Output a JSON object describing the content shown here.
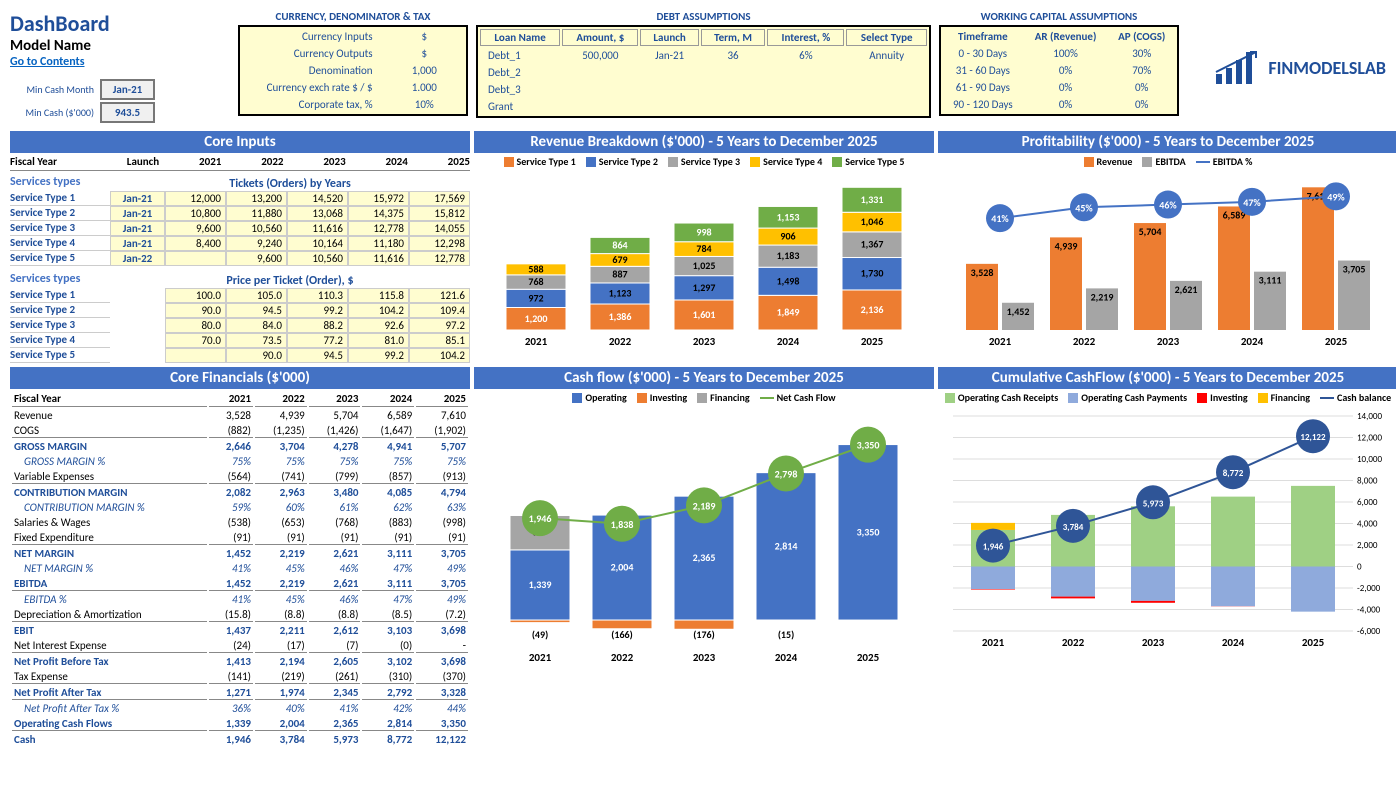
{
  "header": {
    "title": "DashBoard",
    "subtitle": "Model Name",
    "link": "Go to Contents",
    "min_cash_month_label": "Min Cash Month",
    "min_cash_month_value": "Jan-21",
    "min_cash_amt_label": "Min Cash ($'000)",
    "min_cash_amt_value": "943.5"
  },
  "currency": {
    "title": "CURRENCY, DENOMINATOR & TAX",
    "rows": [
      {
        "label": "Currency Inputs",
        "value": "$"
      },
      {
        "label": "Currency Outputs",
        "value": "$"
      },
      {
        "label": "Denomination",
        "value": "1,000"
      },
      {
        "label": "Currency exch rate $ / $",
        "value": "1.000"
      },
      {
        "label": "Corporate tax, %",
        "value": "10%"
      }
    ]
  },
  "debt": {
    "title": "DEBT ASSUMPTIONS",
    "headers": [
      "Loan Name",
      "Amount, $",
      "Launch",
      "Term, M",
      "Interest, %",
      "Select Type"
    ],
    "rows": [
      {
        "name": "Debt_1",
        "amount": "500,000",
        "launch": "Jan-21",
        "term": "36",
        "interest": "6%",
        "type": "Annuity"
      },
      {
        "name": "Debt_2",
        "amount": "",
        "launch": "",
        "term": "",
        "interest": "",
        "type": ""
      },
      {
        "name": "Debt_3",
        "amount": "",
        "launch": "",
        "term": "",
        "interest": "",
        "type": ""
      },
      {
        "name": "Grant",
        "amount": "",
        "launch": "",
        "term": "",
        "interest": "",
        "type": ""
      }
    ]
  },
  "wc": {
    "title": "WORKING CAPITAL ASSUMPTIONS",
    "headers": [
      "Timeframe",
      "AR (Revenue)",
      "AP (COGS)"
    ],
    "rows": [
      {
        "tf": "0 - 30 Days",
        "ar": "100%",
        "ap": "30%"
      },
      {
        "tf": "31 - 60 Days",
        "ar": "0%",
        "ap": "70%"
      },
      {
        "tf": "61 - 90 Days",
        "ar": "0%",
        "ap": "0%"
      },
      {
        "tf": "90 - 120 Days",
        "ar": "0%",
        "ap": "0%"
      }
    ]
  },
  "logo": "FINMODELSLAB",
  "years": [
    "2021",
    "2022",
    "2023",
    "2024",
    "2025"
  ],
  "core_inputs": {
    "banner": "Core Inputs",
    "fiscal_label": "Fiscal Year",
    "launch_label": "Launch",
    "svc_types_label": "Services types",
    "tickets_label": "Tickets (Orders) by Years",
    "price_label": "Price per Ticket (Order), $",
    "services": [
      {
        "name": "Service Type 1",
        "launch": "Jan-21",
        "tickets": [
          "12,000",
          "13,200",
          "14,520",
          "15,972",
          "17,569"
        ],
        "price": [
          "100.0",
          "105.0",
          "110.3",
          "115.8",
          "121.6"
        ]
      },
      {
        "name": "Service Type 2",
        "launch": "Jan-21",
        "tickets": [
          "10,800",
          "11,880",
          "13,068",
          "14,375",
          "15,812"
        ],
        "price": [
          "90.0",
          "94.5",
          "99.2",
          "104.2",
          "109.4"
        ]
      },
      {
        "name": "Service Type 3",
        "launch": "Jan-21",
        "tickets": [
          "9,600",
          "10,560",
          "11,616",
          "12,778",
          "14,055"
        ],
        "price": [
          "80.0",
          "84.0",
          "88.2",
          "92.6",
          "97.2"
        ]
      },
      {
        "name": "Service Type 4",
        "launch": "Jan-21",
        "tickets": [
          "8,400",
          "9,240",
          "10,164",
          "11,180",
          "12,298"
        ],
        "price": [
          "70.0",
          "73.5",
          "77.2",
          "81.0",
          "85.1"
        ]
      },
      {
        "name": "Service Type 5",
        "launch": "Jan-22",
        "tickets": [
          "",
          "9,600",
          "10,560",
          "11,616",
          "12,778"
        ],
        "price": [
          "",
          "90.0",
          "94.5",
          "99.2",
          "104.2"
        ]
      }
    ]
  },
  "revenue_chart": {
    "banner": "Revenue Breakdown ($'000) - 5 Years to December 2025",
    "legend": [
      "Service Type 1",
      "Service Type 2",
      "Service Type 3",
      "Service Type 4",
      "Service Type 5"
    ],
    "colors": [
      "#ed7d31",
      "#4472c4",
      "#a5a5a5",
      "#ffc000",
      "#70ad47"
    ],
    "data": [
      {
        "year": "2021",
        "vals": [
          1200,
          972,
          768,
          588,
          0
        ]
      },
      {
        "year": "2022",
        "vals": [
          1386,
          1123,
          887,
          679,
          864
        ]
      },
      {
        "year": "2023",
        "vals": [
          1601,
          1297,
          1025,
          784,
          998
        ]
      },
      {
        "year": "2024",
        "vals": [
          1849,
          1498,
          1183,
          906,
          1153
        ]
      },
      {
        "year": "2025",
        "vals": [
          2136,
          1730,
          1367,
          1046,
          1331
        ]
      }
    ],
    "ymax": 8000
  },
  "profit_chart": {
    "banner": "Profitability ($'000) - 5 Years to December 2025",
    "legend": {
      "rev": "Revenue",
      "ebitda": "EBITDA",
      "pct": "EBITDA %"
    },
    "colors": {
      "rev": "#ed7d31",
      "ebitda": "#a5a5a5",
      "line": "#4472c4"
    },
    "data": [
      {
        "year": "2021",
        "rev": 3528,
        "ebitda": 1452,
        "pct": "41%"
      },
      {
        "year": "2022",
        "rev": 4939,
        "ebitda": 2219,
        "pct": "45%"
      },
      {
        "year": "2023",
        "rev": 5704,
        "ebitda": 2621,
        "pct": "46%"
      },
      {
        "year": "2024",
        "rev": 6589,
        "ebitda": 3111,
        "pct": "47%"
      },
      {
        "year": "2025",
        "rev": 7610,
        "ebitda": 3705,
        "pct": "49%"
      }
    ],
    "ymax": 8000
  },
  "financials": {
    "banner": "Core Financials ($'000)",
    "fiscal_label": "Fiscal Year",
    "rows": [
      {
        "label": "Revenue",
        "vals": [
          "3,528",
          "4,939",
          "5,704",
          "6,589",
          "7,610"
        ],
        "style": ""
      },
      {
        "label": "COGS",
        "vals": [
          "(882)",
          "(1,235)",
          "(1,426)",
          "(1,647)",
          "(1,902)"
        ],
        "style": "uline"
      },
      {
        "label": "GROSS MARGIN",
        "vals": [
          "2,646",
          "3,704",
          "4,278",
          "4,941",
          "5,707"
        ],
        "style": "bold"
      },
      {
        "label": "GROSS MARGIN %",
        "vals": [
          "75%",
          "75%",
          "75%",
          "75%",
          "75%"
        ],
        "style": "italic"
      },
      {
        "label": "Variable Expenses",
        "vals": [
          "(564)",
          "(741)",
          "(799)",
          "(857)",
          "(913)"
        ],
        "style": "uline"
      },
      {
        "label": "CONTRIBUTION MARGIN",
        "vals": [
          "2,082",
          "2,963",
          "3,480",
          "4,085",
          "4,794"
        ],
        "style": "bold"
      },
      {
        "label": "CONTRIBUTION MARGIN %",
        "vals": [
          "59%",
          "60%",
          "61%",
          "62%",
          "63%"
        ],
        "style": "italic"
      },
      {
        "label": "Salaries & Wages",
        "vals": [
          "(538)",
          "(653)",
          "(768)",
          "(883)",
          "(998)"
        ],
        "style": ""
      },
      {
        "label": "Fixed Expenditure",
        "vals": [
          "(91)",
          "(91)",
          "(91)",
          "(91)",
          "(91)"
        ],
        "style": "uline"
      },
      {
        "label": "NET MARGIN",
        "vals": [
          "1,452",
          "2,219",
          "2,621",
          "3,111",
          "3,705"
        ],
        "style": "bold"
      },
      {
        "label": "NET MARGIN %",
        "vals": [
          "41%",
          "45%",
          "46%",
          "47%",
          "49%"
        ],
        "style": "italic"
      },
      {
        "label": "EBITDA",
        "vals": [
          "1,452",
          "2,219",
          "2,621",
          "3,111",
          "3,705"
        ],
        "style": "bold uline"
      },
      {
        "label": "EBITDA %",
        "vals": [
          "41%",
          "45%",
          "46%",
          "47%",
          "49%"
        ],
        "style": "italic"
      },
      {
        "label": "Depreciation & Amortization",
        "vals": [
          "(15.8)",
          "(8.8)",
          "(8.8)",
          "(8.5)",
          "(7.2)"
        ],
        "style": "uline"
      },
      {
        "label": "EBIT",
        "vals": [
          "1,437",
          "2,211",
          "2,612",
          "3,103",
          "3,698"
        ],
        "style": "bold"
      },
      {
        "label": "Net Interest Expense",
        "vals": [
          "(24)",
          "(17)",
          "(7)",
          "(0)",
          "-"
        ],
        "style": "uline"
      },
      {
        "label": "Net Profit Before Tax",
        "vals": [
          "1,413",
          "2,194",
          "2,605",
          "3,102",
          "3,698"
        ],
        "style": "bold"
      },
      {
        "label": "Tax Expense",
        "vals": [
          "(141)",
          "(219)",
          "(261)",
          "(310)",
          "(370)"
        ],
        "style": "uline"
      },
      {
        "label": "Net Profit After Tax",
        "vals": [
          "1,271",
          "1,974",
          "2,345",
          "2,792",
          "3,328"
        ],
        "style": "bold uline"
      },
      {
        "label": "Net Profit After Tax %",
        "vals": [
          "36%",
          "40%",
          "41%",
          "42%",
          "44%"
        ],
        "style": "italic"
      },
      {
        "label": "Operating Cash Flows",
        "vals": [
          "1,339",
          "2,004",
          "2,365",
          "2,814",
          "3,350"
        ],
        "style": "bold uline"
      },
      {
        "label": "Cash",
        "vals": [
          "1,946",
          "3,784",
          "5,973",
          "8,772",
          "12,122"
        ],
        "style": "bold"
      }
    ]
  },
  "cashflow_chart": {
    "banner": "Cash flow ($'000) - 5 Years to December 2025",
    "legend": {
      "op": "Operating",
      "inv": "Investing",
      "fin": "Financing",
      "net": "Net Cash Flow"
    },
    "colors": {
      "op": "#4472c4",
      "inv": "#ed7d31",
      "fin": "#a5a5a5",
      "net": "#70ad47"
    },
    "data": [
      {
        "year": "2021",
        "op": 1339,
        "inv": -49,
        "fin": 657,
        "net": 1946,
        "inv_lbl": "(49)"
      },
      {
        "year": "2022",
        "op": 2004,
        "inv": -166,
        "fin": 0,
        "net": 1838,
        "inv_lbl": "(166)"
      },
      {
        "year": "2023",
        "op": 2365,
        "inv": -176,
        "fin": 0,
        "net": 2189,
        "inv_lbl": "(176)"
      },
      {
        "year": "2024",
        "op": 2814,
        "inv": -15,
        "fin": 0,
        "net": 2798,
        "inv_lbl": "(15)"
      },
      {
        "year": "2025",
        "op": 3350,
        "inv": 0,
        "fin": 0,
        "net": 3350,
        "inv_lbl": ""
      }
    ],
    "ymax": 3800,
    "ymin": -400
  },
  "cumcash_chart": {
    "banner": "Cumulative CashFlow ($'000) - 5 Years to December 2025",
    "legend": {
      "ocr": "Operating Cash Receipts",
      "ocp": "Operating Cash Payments",
      "inv": "Investing",
      "fin": "Financing",
      "cb": "Cash balance"
    },
    "colors": {
      "ocr": "#9fd084",
      "ocp": "#8faadc",
      "inv": "#ff0000",
      "fin": "#ffc000",
      "cb": "#2f5597"
    },
    "data": [
      {
        "year": "2021",
        "ocr": 3400,
        "ocp": -2100,
        "inv": -49,
        "fin": 657,
        "cb": 1946
      },
      {
        "year": "2022",
        "ocr": 4800,
        "ocp": -2800,
        "inv": -166,
        "fin": 0,
        "cb": 3784
      },
      {
        "year": "2023",
        "ocr": 5600,
        "ocp": -3200,
        "inv": -176,
        "fin": 0,
        "cb": 5973
      },
      {
        "year": "2024",
        "ocr": 6500,
        "ocp": -3700,
        "inv": -15,
        "fin": 0,
        "cb": 8772
      },
      {
        "year": "2025",
        "ocr": 7500,
        "ocp": -4200,
        "inv": 0,
        "fin": 0,
        "cb": 12122
      }
    ],
    "ymax": 14000,
    "ymin": -6000,
    "yticks": [
      -6000,
      -4000,
      -2000,
      0,
      2000,
      4000,
      6000,
      8000,
      10000,
      12000,
      14000
    ]
  }
}
